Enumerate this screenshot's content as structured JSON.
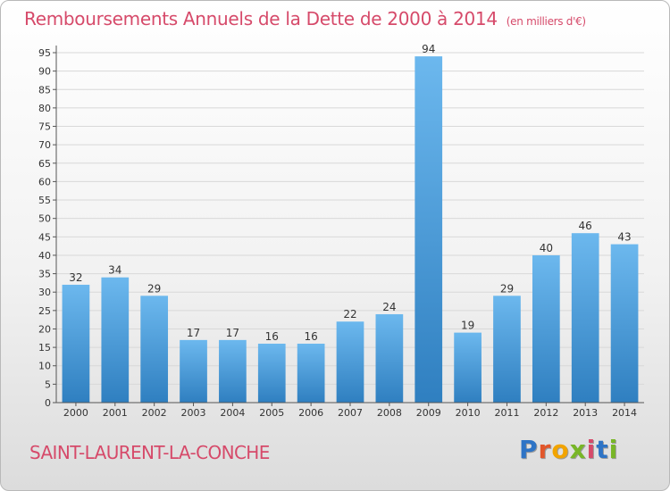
{
  "title": "Remboursements Annuels de la Dette de 2000 à 2014",
  "unit": "(en milliers d'€)",
  "commune": "SAINT-LAURENT-LA-CONCHE",
  "logo": {
    "letters": [
      "P",
      "r",
      "o",
      "x",
      "i",
      "t",
      "i"
    ],
    "colors": [
      "#2e74c6",
      "#e2562a",
      "#f2a400",
      "#78b627",
      "#d64a6a",
      "#2e74c6",
      "#78b627"
    ]
  },
  "colors": {
    "bar_light": "#6cb8ee",
    "bar_dark": "#2f7fc0",
    "grid": "#d8d8d8",
    "title": "#d64a6a"
  },
  "chart_data": {
    "type": "bar",
    "categories": [
      "2000",
      "2001",
      "2002",
      "2003",
      "2004",
      "2005",
      "2006",
      "2007",
      "2008",
      "2009",
      "2010",
      "2011",
      "2012",
      "2013",
      "2014"
    ],
    "values": [
      32,
      34,
      29,
      17,
      17,
      16,
      16,
      22,
      24,
      94,
      19,
      29,
      40,
      46,
      43
    ],
    "ylim": [
      0,
      95
    ],
    "yticks": [
      0,
      5,
      10,
      15,
      20,
      25,
      30,
      35,
      40,
      45,
      50,
      55,
      60,
      65,
      70,
      75,
      80,
      85,
      90,
      95
    ],
    "grid": true,
    "data_labels": true
  }
}
